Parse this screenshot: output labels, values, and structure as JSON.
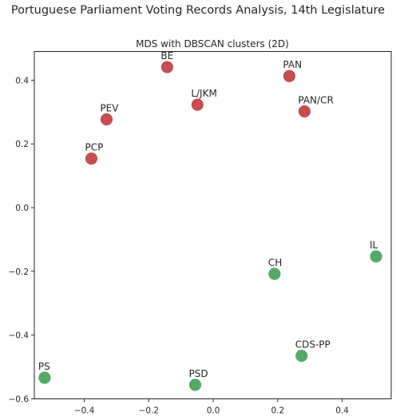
{
  "figure": {
    "suptitle": "Portuguese Parliament Voting Records Analysis, 14th Legislature"
  },
  "chart_data": {
    "type": "scatter",
    "title": "MDS with DBSCAN clusters (2D)",
    "xlabel": "",
    "ylabel": "",
    "xlim": [
      -0.555,
      0.552
    ],
    "ylim": [
      -0.6,
      0.49
    ],
    "xticks": [
      -0.4,
      -0.2,
      0.0,
      0.2,
      0.4
    ],
    "yticks": [
      -0.6,
      -0.4,
      -0.2,
      0.0,
      0.2,
      0.4
    ],
    "grid": false,
    "colors": {
      "cluster_0": "#c44e52",
      "cluster_1": "#55a868"
    },
    "points": [
      {
        "label": "BE",
        "x": -0.143,
        "y": 0.441,
        "cluster": 0
      },
      {
        "label": "PAN",
        "x": 0.236,
        "y": 0.413,
        "cluster": 0
      },
      {
        "label": "L/JKM",
        "x": -0.049,
        "y": 0.323,
        "cluster": 0
      },
      {
        "label": "PAN/CR",
        "x": 0.283,
        "y": 0.302,
        "cluster": 0
      },
      {
        "label": "PEV",
        "x": -0.331,
        "y": 0.277,
        "cluster": 0
      },
      {
        "label": "PCP",
        "x": -0.378,
        "y": 0.154,
        "cluster": 0
      },
      {
        "label": "IL",
        "x": 0.505,
        "y": -0.153,
        "cluster": 1
      },
      {
        "label": "CH",
        "x": 0.19,
        "y": -0.208,
        "cluster": 1
      },
      {
        "label": "CDS-PP",
        "x": 0.274,
        "y": -0.465,
        "cluster": 1
      },
      {
        "label": "PS",
        "x": -0.523,
        "y": -0.534,
        "cluster": 1
      },
      {
        "label": "PSD",
        "x": -0.056,
        "y": -0.556,
        "cluster": 1
      }
    ]
  }
}
